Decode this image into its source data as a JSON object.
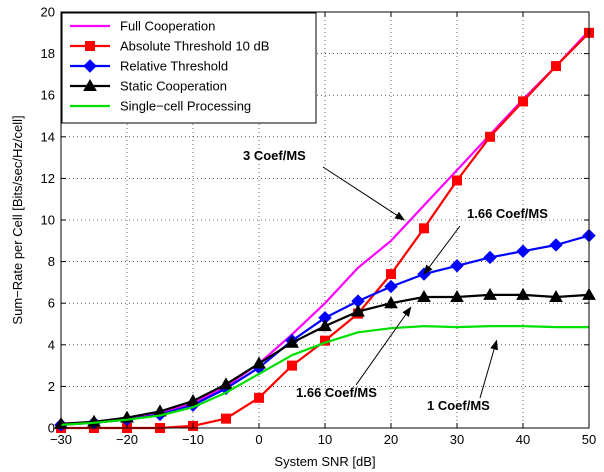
{
  "chart_data": {
    "type": "line",
    "xlabel": "System SNR [dB]",
    "ylabel": "Sum−Rate per Cell [Bits/sec/Hz/cell]",
    "xlim": [
      -30,
      50
    ],
    "ylim": [
      0,
      20
    ],
    "xticks": [
      -30,
      -20,
      -10,
      0,
      10,
      20,
      30,
      40,
      50
    ],
    "yticks": [
      0,
      2,
      4,
      6,
      8,
      10,
      12,
      14,
      16,
      18,
      20
    ],
    "xtick_labels": [
      "−30",
      "−20",
      "−10",
      "0",
      "10",
      "20",
      "30",
      "40",
      "50"
    ],
    "ytick_labels": [
      "0",
      "2",
      "4",
      "6",
      "8",
      "10",
      "12",
      "14",
      "16",
      "18",
      "20"
    ],
    "grid": true,
    "legend_position": "top-left",
    "series": [
      {
        "name": "Full Cooperation",
        "color": "#ff00ff",
        "marker": "none",
        "x": [
          -30,
          -25,
          -20,
          -15,
          -10,
          -5,
          0,
          5,
          10,
          15,
          20,
          25,
          30,
          35,
          40,
          45,
          50
        ],
        "y": [
          0.2,
          0.3,
          0.45,
          0.7,
          1.2,
          2.0,
          3.1,
          4.5,
          6.0,
          7.7,
          9.0,
          10.7,
          12.4,
          14.1,
          15.8,
          17.4,
          19.1
        ]
      },
      {
        "name": "Absolute Threshold 10 dB",
        "color": "#ff0000",
        "marker": "square",
        "x": [
          -30,
          -25,
          -20,
          -15,
          -10,
          -5,
          0,
          5,
          10,
          15,
          20,
          25,
          30,
          35,
          40,
          45,
          50
        ],
        "y": [
          0.0,
          0.0,
          0.0,
          0.0,
          0.1,
          0.45,
          1.45,
          3.0,
          4.2,
          5.5,
          7.4,
          9.6,
          11.9,
          14.0,
          15.7,
          17.4,
          19.0
        ]
      },
      {
        "name": "Relative Threshold",
        "color": "#0000ff",
        "marker": "diamond",
        "x": [
          -30,
          -25,
          -20,
          -15,
          -10,
          -5,
          0,
          5,
          10,
          15,
          20,
          25,
          30,
          35,
          40,
          45,
          50
        ],
        "y": [
          0.15,
          0.25,
          0.4,
          0.65,
          1.1,
          1.9,
          2.9,
          4.2,
          5.3,
          6.1,
          6.8,
          7.4,
          7.8,
          8.2,
          8.5,
          8.8,
          9.25
        ]
      },
      {
        "name": "Static Cooperation",
        "color": "#000000",
        "marker": "triangle",
        "x": [
          -30,
          -25,
          -20,
          -15,
          -10,
          -5,
          0,
          5,
          10,
          15,
          20,
          25,
          30,
          35,
          40,
          45,
          50
        ],
        "y": [
          0.2,
          0.3,
          0.5,
          0.8,
          1.3,
          2.1,
          3.1,
          4.1,
          4.9,
          5.6,
          6.0,
          6.3,
          6.3,
          6.4,
          6.4,
          6.3,
          6.4
        ]
      },
      {
        "name": "Single−cell Processing",
        "color": "#00e000",
        "marker": "none",
        "x": [
          -30,
          -25,
          -20,
          -15,
          -10,
          -5,
          0,
          5,
          10,
          15,
          20,
          25,
          30,
          35,
          40,
          45,
          50
        ],
        "y": [
          0.15,
          0.25,
          0.4,
          0.6,
          1.0,
          1.7,
          2.6,
          3.5,
          4.1,
          4.6,
          4.8,
          4.9,
          4.85,
          4.9,
          4.9,
          4.85,
          4.85
        ]
      }
    ],
    "annotations": [
      {
        "text": "3 Coef/MS",
        "arrow_to": [
          22.0,
          10.0
        ]
      },
      {
        "text": "1.66 Coef/MS",
        "arrow_to": [
          25.0,
          7.4
        ]
      },
      {
        "text": "1.66 Coef/MS",
        "arrow_to": [
          23.0,
          5.8
        ]
      },
      {
        "text": "1 Coef/MS",
        "arrow_to": [
          36.0,
          4.2
        ]
      }
    ]
  }
}
